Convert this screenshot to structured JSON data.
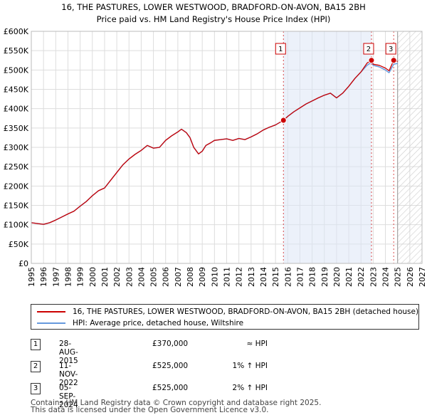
{
  "chart_data": {
    "type": "line",
    "title": "16, THE PASTURES, LOWER WESTWOOD, BRADFORD-ON-AVON, BA15 2BH",
    "subtitle": "Price paid vs. HM Land Registry's House Price Index (HPI)",
    "xlabel": "",
    "ylabel": "",
    "xlim": [
      1995,
      2027
    ],
    "ylim": [
      0,
      600000
    ],
    "x_ticks": [
      "1995",
      "1996",
      "1997",
      "1998",
      "1999",
      "2000",
      "2001",
      "2002",
      "2003",
      "2004",
      "2005",
      "2006",
      "2007",
      "2008",
      "2009",
      "2010",
      "2011",
      "2012",
      "2013",
      "2014",
      "2015",
      "2016",
      "2017",
      "2018",
      "2019",
      "2020",
      "2021",
      "2022",
      "2023",
      "2024",
      "2025",
      "2026",
      "2027"
    ],
    "y_ticks": [
      {
        "value": 0,
        "label": "£0"
      },
      {
        "value": 50000,
        "label": "£50K"
      },
      {
        "value": 100000,
        "label": "£100K"
      },
      {
        "value": 150000,
        "label": "£150K"
      },
      {
        "value": 200000,
        "label": "£200K"
      },
      {
        "value": 250000,
        "label": "£250K"
      },
      {
        "value": 300000,
        "label": "£300K"
      },
      {
        "value": 350000,
        "label": "£350K"
      },
      {
        "value": 400000,
        "label": "£400K"
      },
      {
        "value": 450000,
        "label": "£450K"
      },
      {
        "value": 500000,
        "label": "£500K"
      },
      {
        "value": 550000,
        "label": "£550K"
      },
      {
        "value": 600000,
        "label": "£600K"
      }
    ],
    "grid": true,
    "forecast_start": 2025.0,
    "series": [
      {
        "name": "16, THE PASTURES, LOWER WESTWOOD, BRADFORD-ON-AVON, BA15 2BH (detached house)",
        "color": "#cc0000",
        "x": [
          1995.0,
          1995.5,
          1996.0,
          1996.5,
          1997.0,
          1997.5,
          1998.0,
          1998.5,
          1999.0,
          1999.5,
          2000.0,
          2000.5,
          2001.0,
          2001.5,
          2002.0,
          2002.5,
          2003.0,
          2003.5,
          2004.0,
          2004.5,
          2005.0,
          2005.5,
          2006.0,
          2006.5,
          2007.0,
          2007.3,
          2007.7,
          2008.0,
          2008.3,
          2008.7,
          2009.0,
          2009.3,
          2009.7,
          2010.0,
          2010.5,
          2011.0,
          2011.5,
          2012.0,
          2012.5,
          2013.0,
          2013.5,
          2014.0,
          2014.5,
          2015.0,
          2015.65,
          2016.0,
          2016.5,
          2017.0,
          2017.5,
          2018.0,
          2018.5,
          2019.0,
          2019.5,
          2020.0,
          2020.5,
          2021.0,
          2021.5,
          2022.0,
          2022.5,
          2022.86,
          2023.0,
          2023.5,
          2024.0,
          2024.3,
          2024.68,
          2025.0
        ],
        "values": [
          105000,
          103000,
          101000,
          105000,
          112000,
          120000,
          128000,
          135000,
          148000,
          160000,
          175000,
          188000,
          195000,
          215000,
          235000,
          255000,
          270000,
          282000,
          292000,
          305000,
          298000,
          300000,
          318000,
          330000,
          340000,
          347000,
          338000,
          325000,
          300000,
          283000,
          290000,
          305000,
          312000,
          318000,
          320000,
          322000,
          318000,
          323000,
          320000,
          327000,
          335000,
          345000,
          352000,
          358000,
          370000,
          380000,
          392000,
          402000,
          412000,
          420000,
          428000,
          435000,
          440000,
          428000,
          440000,
          458000,
          478000,
          495000,
          518000,
          525000,
          515000,
          512000,
          505000,
          498000,
          525000,
          522000
        ]
      },
      {
        "name": "HPI: Average price, detached house, Wiltshire",
        "color": "#6699dd",
        "x": [
          1995.0,
          1995.5,
          1996.0,
          1996.5,
          1997.0,
          1997.5,
          1998.0,
          1998.5,
          1999.0,
          1999.5,
          2000.0,
          2000.5,
          2001.0,
          2001.5,
          2002.0,
          2002.5,
          2003.0,
          2003.5,
          2004.0,
          2004.5,
          2005.0,
          2005.5,
          2006.0,
          2006.5,
          2007.0,
          2007.3,
          2007.7,
          2008.0,
          2008.3,
          2008.7,
          2009.0,
          2009.3,
          2009.7,
          2010.0,
          2010.5,
          2011.0,
          2011.5,
          2012.0,
          2012.5,
          2013.0,
          2013.5,
          2014.0,
          2014.5,
          2015.0,
          2015.65,
          2016.0,
          2016.5,
          2017.0,
          2017.5,
          2018.0,
          2018.5,
          2019.0,
          2019.5,
          2020.0,
          2020.5,
          2021.0,
          2021.5,
          2022.0,
          2022.5,
          2022.86,
          2023.0,
          2023.5,
          2024.0,
          2024.3,
          2024.68,
          2025.0
        ],
        "values": [
          105000,
          103000,
          101000,
          105000,
          112000,
          120000,
          128000,
          135000,
          148000,
          160000,
          175000,
          188000,
          195000,
          215000,
          235000,
          255000,
          270000,
          282000,
          292000,
          305000,
          298000,
          300000,
          318000,
          330000,
          340000,
          347000,
          338000,
          325000,
          300000,
          283000,
          290000,
          305000,
          312000,
          318000,
          320000,
          322000,
          318000,
          323000,
          320000,
          327000,
          335000,
          345000,
          352000,
          358000,
          370000,
          380000,
          392000,
          402000,
          412000,
          420000,
          428000,
          435000,
          440000,
          428000,
          440000,
          458000,
          478000,
          495000,
          512000,
          520000,
          512000,
          508000,
          500000,
          493000,
          515000,
          517000
        ]
      }
    ],
    "transactions": [
      {
        "label": "1",
        "date": "28-AUG-2015",
        "x": 2015.65,
        "price": "£370,000",
        "value": 370000,
        "hpi_note": "≈ HPI"
      },
      {
        "label": "2",
        "date": "11-NOV-2022",
        "x": 2022.86,
        "price": "£525,000",
        "value": 525000,
        "hpi_note": "1% ↑ HPI"
      },
      {
        "label": "3",
        "date": "05-SEP-2024",
        "x": 2024.68,
        "price": "£525,000",
        "value": 525000,
        "hpi_note": "2% ↑ HPI"
      }
    ]
  },
  "legend": {
    "property_label": "16, THE PASTURES, LOWER WESTWOOD, BRADFORD-ON-AVON, BA15 2BH (detached house)",
    "hpi_label": "HPI: Average price, detached house, Wiltshire",
    "property_color": "#cc0000",
    "hpi_color": "#6699dd"
  },
  "footer": {
    "line1": "Contains HM Land Registry data © Crown copyright and database right 2025.",
    "line2": "This data is licensed under the Open Government Licence v3.0."
  }
}
